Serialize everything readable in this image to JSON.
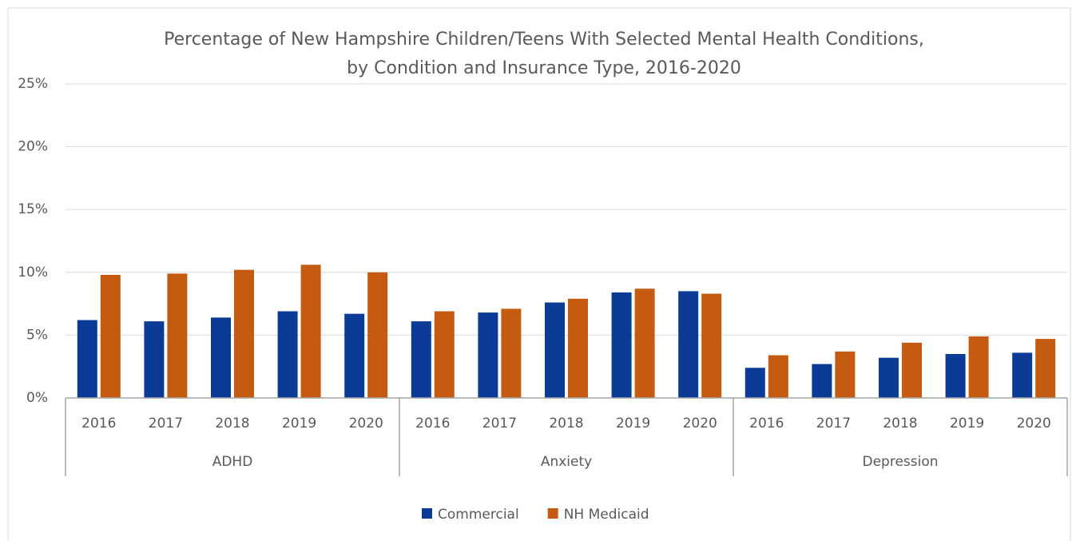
{
  "chart_data": {
    "type": "bar",
    "title": "Percentage of New Hampshire Children/Teens With Selected Mental Health Conditions, by Condition and Insurance Type, 2016-2020",
    "groups": [
      {
        "name": "ADHD",
        "categories": [
          "2016",
          "2017",
          "2018",
          "2019",
          "2020"
        ]
      },
      {
        "name": "Anxiety",
        "categories": [
          "2016",
          "2017",
          "2018",
          "2019",
          "2020"
        ]
      },
      {
        "name": "Depression",
        "categories": [
          "2016",
          "2017",
          "2018",
          "2019",
          "2020"
        ]
      }
    ],
    "series": [
      {
        "name": "Commercial",
        "color": "#0b3b96",
        "values": [
          6.2,
          6.1,
          6.4,
          6.9,
          6.7,
          6.1,
          6.8,
          7.6,
          8.4,
          8.5,
          2.4,
          2.7,
          3.2,
          3.5,
          3.6
        ]
      },
      {
        "name": "NH Medicaid",
        "color": "#c55a11",
        "values": [
          9.8,
          9.9,
          10.2,
          10.6,
          10.0,
          6.9,
          7.1,
          7.9,
          8.7,
          8.3,
          3.4,
          3.7,
          4.4,
          4.9,
          4.7
        ]
      }
    ],
    "ylim": [
      0,
      25
    ],
    "yticks": [
      {
        "value": 0,
        "label": "0%"
      },
      {
        "value": 5,
        "label": "5%"
      },
      {
        "value": 10,
        "label": "10%"
      },
      {
        "value": 15,
        "label": "15%"
      },
      {
        "value": 20,
        "label": "20%"
      },
      {
        "value": 25,
        "label": "25%"
      }
    ],
    "grid": true,
    "legend": "bottom"
  }
}
